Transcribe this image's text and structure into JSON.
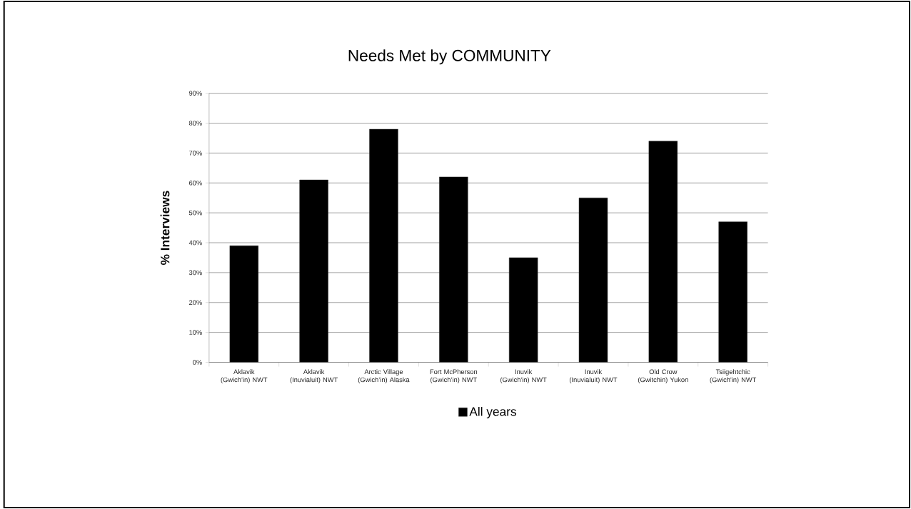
{
  "chart_data": {
    "type": "bar",
    "title": "Needs Met by COMMUNITY",
    "ylabel": "% Interviews",
    "categories": [
      "Aklavik (Gwich’in) NWT",
      "Aklavik (Inuvialuit) NWT",
      "Arctic Village (Gwich’in) Alaska",
      "Fort McPherson (Gwich’in) NWT",
      "Inuvik (Gwich'in) NWT",
      "Inuvik (Inuvialuit) NWT",
      "Old Crow (Gwitchin) Yukon",
      "Tsiigehtchic (Gwich'in) NWT"
    ],
    "series": [
      {
        "name": "All years",
        "color": "#000000",
        "values": [
          39,
          61,
          78,
          62,
          35,
          55,
          74,
          47
        ]
      }
    ],
    "ylim": [
      0,
      90
    ],
    "yticks": [
      {
        "value": 0,
        "label": "0%"
      },
      {
        "value": 10,
        "label": "10%"
      },
      {
        "value": 20,
        "label": "20%"
      },
      {
        "value": 30,
        "label": "30%"
      },
      {
        "value": 40,
        "label": "40%"
      },
      {
        "value": 50,
        "label": "50%"
      },
      {
        "value": 60,
        "label": "60%"
      },
      {
        "value": 70,
        "label": "70%"
      },
      {
        "value": 80,
        "label": "80%"
      },
      {
        "value": 90,
        "label": "90%"
      }
    ],
    "grid": "y",
    "legend": "bottom"
  }
}
